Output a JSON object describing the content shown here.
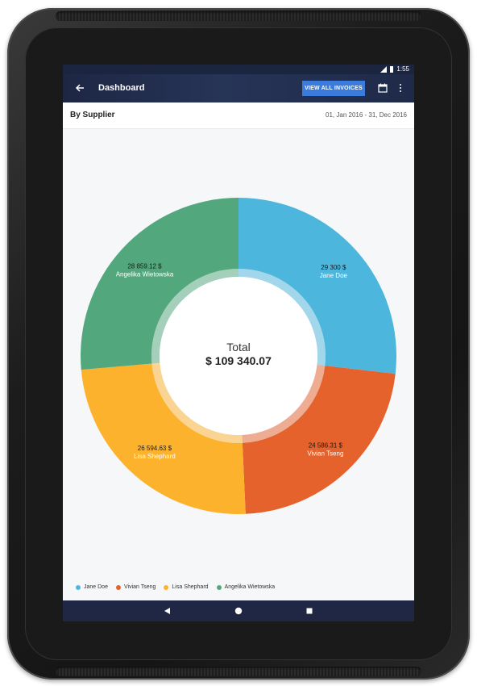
{
  "status_bar": {
    "time": "1:55"
  },
  "app_bar": {
    "title": "Dashboard",
    "view_all_invoices": "VIEW ALL INVOICES",
    "icons": [
      "back-arrow-icon",
      "calendar-icon",
      "more-vert-icon"
    ]
  },
  "subheader": {
    "label": "By Supplier",
    "date_range": "01, Jan 2016 - 31, Dec 2016"
  },
  "chart_data": {
    "type": "pie",
    "variant": "donut",
    "center_title": "Total",
    "center_value": "$ 109 340.07",
    "total": 109340.07,
    "slices": [
      {
        "name": "Jane Doe",
        "value": 29300,
        "label": "29 300 $",
        "color": "#4db6dc"
      },
      {
        "name": "Vivian Tseng",
        "value": 24586.31,
        "label": "24 586.31 $",
        "color": "#e5622c"
      },
      {
        "name": "Lisa Shephard",
        "value": 26594.63,
        "label": "26 594.63 $",
        "color": "#fdb22d"
      },
      {
        "name": "Angelika Wietowska",
        "value": 28859.12,
        "label": "28 859.12 $",
        "color": "#52a87c"
      }
    ],
    "legend_position": "bottom-left"
  },
  "colors": {
    "app_bar": "#1f2a49",
    "accent_button": "#3a7bdc",
    "nav_bar": "#1f2744"
  }
}
